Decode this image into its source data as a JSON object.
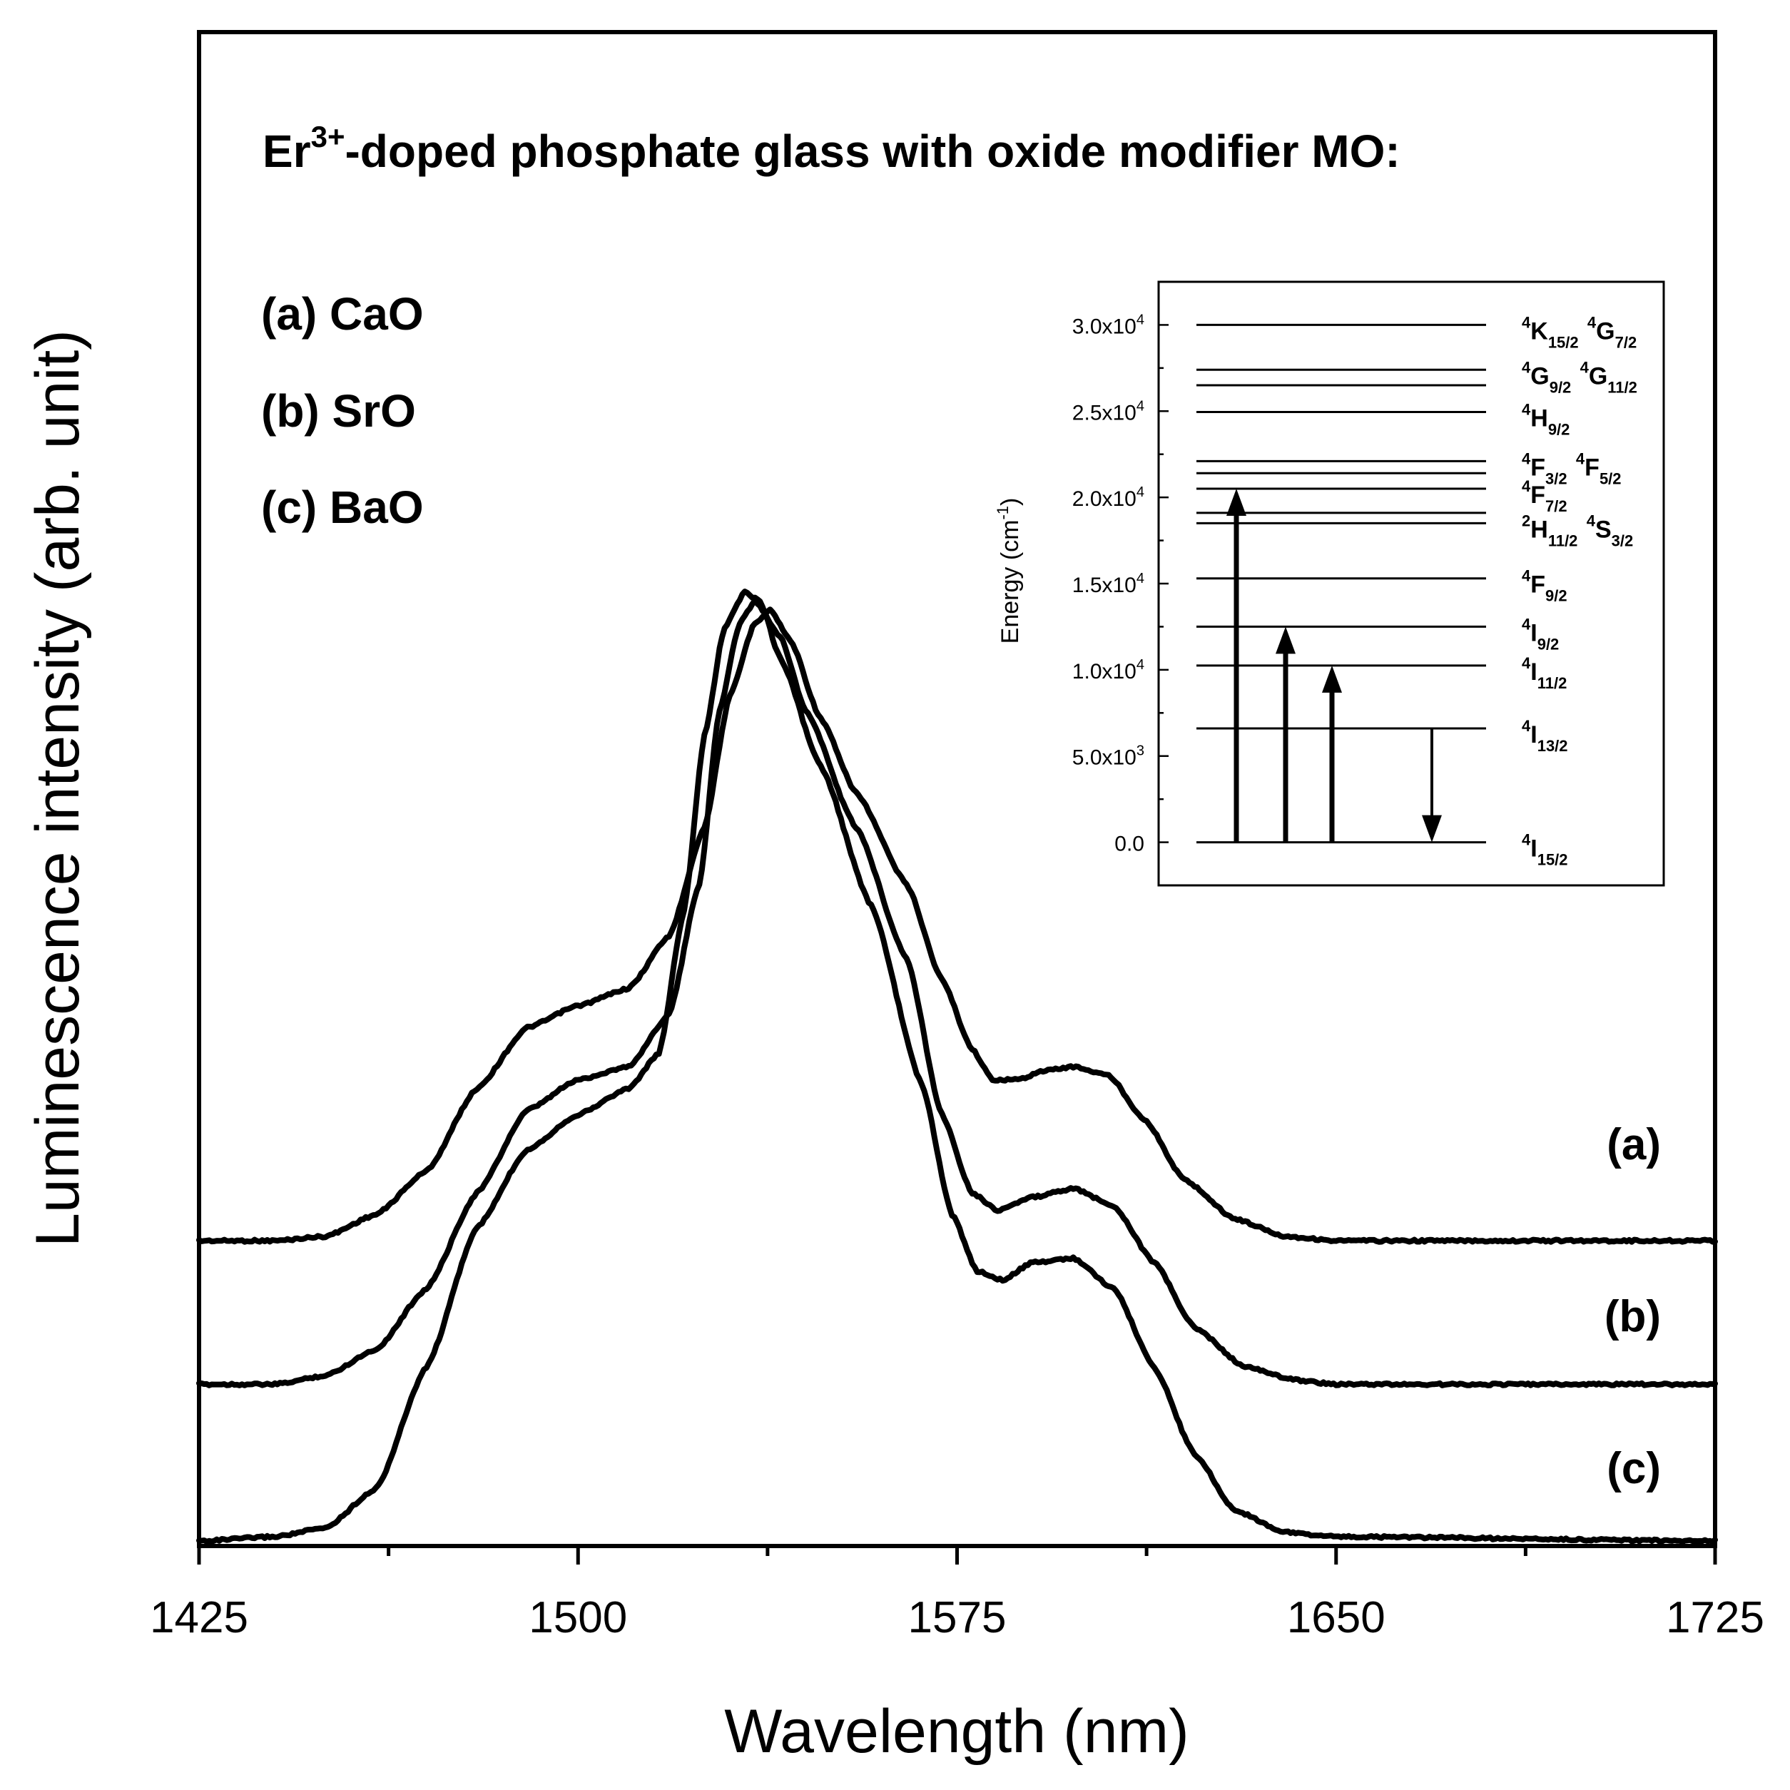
{
  "chart_data": {
    "type": "line",
    "title_parts": {
      "pre": "Er",
      "sup": "3+",
      "post": "-doped phosphate glass with oxide modifier MO:"
    },
    "xlabel": "Wavelength (nm)",
    "ylabel": "Luminescence intensity (arb. unit)",
    "xlim": [
      1425,
      1725
    ],
    "ylim": [
      0,
      3.0
    ],
    "x_ticks": [
      1425,
      1500,
      1575,
      1650,
      1725
    ],
    "x_tick_labels": [
      "1425",
      "1500",
      "1575",
      "1650",
      "1725"
    ],
    "y_ticks_shown": false,
    "legend_entries": [
      "(a) CaO",
      "(b) SrO",
      "(c) BaO"
    ],
    "series": [
      {
        "name": "(a)",
        "label": "(a)",
        "offset": 0.69,
        "points": [
          [
            1425,
            0
          ],
          [
            1440,
            0
          ],
          [
            1450,
            0.01
          ],
          [
            1460,
            0.06
          ],
          [
            1470,
            0.16
          ],
          [
            1480,
            0.35
          ],
          [
            1490,
            0.49
          ],
          [
            1500,
            0.54
          ],
          [
            1510,
            0.58
          ],
          [
            1518,
            0.7
          ],
          [
            1525,
            0.95
          ],
          [
            1530,
            1.25
          ],
          [
            1535,
            1.42
          ],
          [
            1538,
            1.45
          ],
          [
            1542,
            1.38
          ],
          [
            1548,
            1.2
          ],
          [
            1555,
            1.03
          ],
          [
            1565,
            0.82
          ],
          [
            1572,
            0.6
          ],
          [
            1578,
            0.44
          ],
          [
            1582,
            0.37
          ],
          [
            1587,
            0.37
          ],
          [
            1592,
            0.39
          ],
          [
            1598,
            0.4
          ],
          [
            1605,
            0.38
          ],
          [
            1612,
            0.28
          ],
          [
            1620,
            0.14
          ],
          [
            1630,
            0.05
          ],
          [
            1640,
            0.01
          ],
          [
            1650,
            0
          ],
          [
            1725,
            0
          ]
        ]
      },
      {
        "name": "(b)",
        "label": "(b)",
        "offset": 0.36,
        "points": [
          [
            1425,
            0
          ],
          [
            1440,
            0
          ],
          [
            1450,
            0.02
          ],
          [
            1460,
            0.08
          ],
          [
            1470,
            0.22
          ],
          [
            1480,
            0.44
          ],
          [
            1490,
            0.63
          ],
          [
            1500,
            0.7
          ],
          [
            1510,
            0.73
          ],
          [
            1518,
            0.85
          ],
          [
            1524,
            1.15
          ],
          [
            1528,
            1.55
          ],
          [
            1532,
            1.75
          ],
          [
            1535,
            1.8
          ],
          [
            1540,
            1.72
          ],
          [
            1545,
            1.55
          ],
          [
            1555,
            1.28
          ],
          [
            1565,
            0.98
          ],
          [
            1572,
            0.62
          ],
          [
            1578,
            0.44
          ],
          [
            1583,
            0.4
          ],
          [
            1590,
            0.43
          ],
          [
            1598,
            0.45
          ],
          [
            1606,
            0.41
          ],
          [
            1614,
            0.28
          ],
          [
            1622,
            0.13
          ],
          [
            1632,
            0.04
          ],
          [
            1642,
            0.01
          ],
          [
            1650,
            0
          ],
          [
            1725,
            0
          ]
        ]
      },
      {
        "name": "(c)",
        "label": "(c)",
        "offset": 0.0,
        "points": [
          [
            1425,
            0
          ],
          [
            1440,
            0.01
          ],
          [
            1450,
            0.03
          ],
          [
            1460,
            0.12
          ],
          [
            1470,
            0.4
          ],
          [
            1480,
            0.72
          ],
          [
            1490,
            0.9
          ],
          [
            1500,
            0.98
          ],
          [
            1510,
            1.04
          ],
          [
            1516,
            1.12
          ],
          [
            1521,
            1.45
          ],
          [
            1525,
            1.85
          ],
          [
            1529,
            2.1
          ],
          [
            1533,
            2.18
          ],
          [
            1536,
            2.16
          ],
          [
            1540,
            2.03
          ],
          [
            1548,
            1.78
          ],
          [
            1558,
            1.46
          ],
          [
            1568,
            1.05
          ],
          [
            1574,
            0.75
          ],
          [
            1579,
            0.62
          ],
          [
            1584,
            0.6
          ],
          [
            1590,
            0.64
          ],
          [
            1598,
            0.65
          ],
          [
            1606,
            0.58
          ],
          [
            1614,
            0.4
          ],
          [
            1622,
            0.2
          ],
          [
            1630,
            0.07
          ],
          [
            1640,
            0.02
          ],
          [
            1650,
            0.01
          ],
          [
            1725,
            0
          ]
        ]
      }
    ],
    "inset": {
      "ylabel_pre": "Energy (cm",
      "ylabel_sup": "-1",
      "ylabel_post": ")",
      "ylim": [
        -2500,
        32500
      ],
      "y_ticks": [
        0,
        5000,
        10000,
        15000,
        20000,
        25000,
        30000
      ],
      "y_tick_labels": [
        {
          "base": "0.0",
          "exp": ""
        },
        {
          "base": "5.0x10",
          "exp": "3"
        },
        {
          "base": "1.0x10",
          "exp": "4"
        },
        {
          "base": "1.5x10",
          "exp": "4"
        },
        {
          "base": "2.0x10",
          "exp": "4"
        },
        {
          "base": "2.5x10",
          "exp": "4"
        },
        {
          "base": "3.0x10",
          "exp": "4"
        }
      ],
      "levels_cm1": [
        0,
        6600,
        10250,
        12500,
        15300,
        18500,
        19100,
        20500,
        21400,
        22100,
        24950,
        26500,
        27400,
        30000
      ],
      "level_labels": [
        {
          "energy": 0,
          "parts": [
            [
              "4",
              "I",
              "15/2"
            ]
          ]
        },
        {
          "energy": 6600,
          "parts": [
            [
              "4",
              "I",
              "13/2"
            ]
          ]
        },
        {
          "energy": 10250,
          "parts": [
            [
              "4",
              "I",
              "11/2"
            ]
          ]
        },
        {
          "energy": 12500,
          "parts": [
            [
              "4",
              "I",
              "9/2"
            ]
          ]
        },
        {
          "energy": 15300,
          "parts": [
            [
              "4",
              "F",
              "9/2"
            ]
          ]
        },
        {
          "energy": 18500,
          "parts": [
            [
              "2",
              "H",
              "11/2"
            ],
            [
              "4",
              "S",
              "3/2"
            ]
          ]
        },
        {
          "energy": 20500,
          "parts": [
            [
              "4",
              "F",
              "7/2"
            ]
          ]
        },
        {
          "energy": 22100,
          "parts": [
            [
              "4",
              "F",
              "3/2"
            ],
            [
              "4",
              "F",
              "5/2"
            ]
          ]
        },
        {
          "energy": 24950,
          "parts": [
            [
              "4",
              "H",
              "9/2"
            ]
          ]
        },
        {
          "energy": 27400,
          "parts": [
            [
              "4",
              "G",
              "9/2"
            ],
            [
              "4",
              "G",
              "11/2"
            ]
          ]
        },
        {
          "energy": 30000,
          "parts": [
            [
              "4",
              "K",
              "15/2"
            ],
            [
              "4",
              "G",
              "7/2"
            ]
          ]
        }
      ],
      "transitions": [
        {
          "name": "absorption-to-4F7/2",
          "from": 0,
          "to": 20500,
          "direction": "up"
        },
        {
          "name": "absorption-to-4I9/2",
          "from": 0,
          "to": 12500,
          "direction": "up"
        },
        {
          "name": "absorption-to-4I11/2",
          "from": 0,
          "to": 10250,
          "direction": "up"
        },
        {
          "name": "emission-4I13/2-to-4I15/2",
          "from": 6600,
          "to": 0,
          "direction": "down"
        }
      ]
    }
  }
}
